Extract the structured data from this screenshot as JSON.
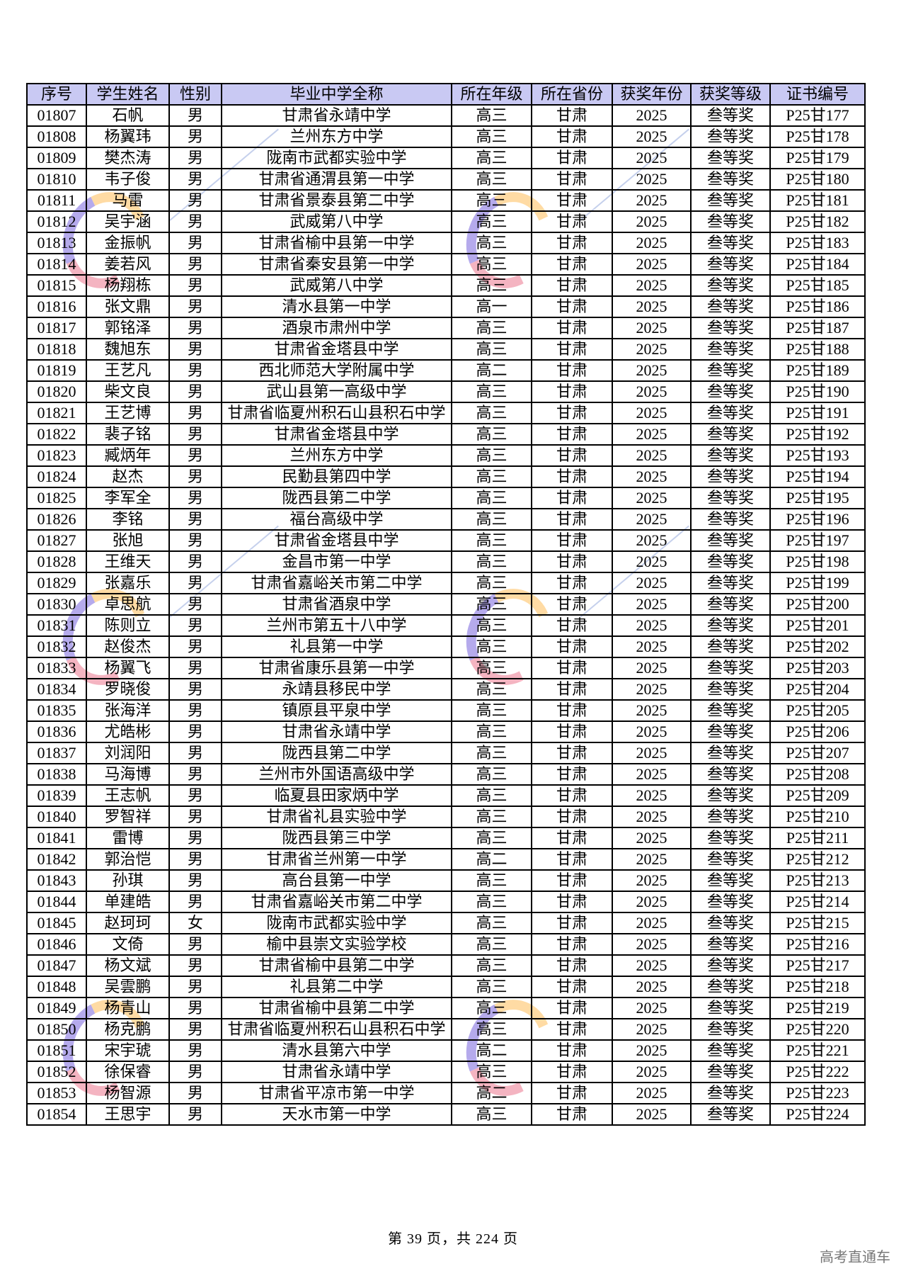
{
  "table": {
    "headers": [
      "序号",
      "学生姓名",
      "性别",
      "毕业中学全称",
      "所在年级",
      "所在省份",
      "获奖年份",
      "获奖等级",
      "证书编号"
    ],
    "rows": [
      [
        "01807",
        "石帆",
        "男",
        "甘肃省永靖中学",
        "高三",
        "甘肃",
        "2025",
        "叁等奖",
        "P25甘177"
      ],
      [
        "01808",
        "杨翼玮",
        "男",
        "兰州东方中学",
        "高三",
        "甘肃",
        "2025",
        "叁等奖",
        "P25甘178"
      ],
      [
        "01809",
        "樊杰涛",
        "男",
        "陇南市武都实验中学",
        "高三",
        "甘肃",
        "2025",
        "叁等奖",
        "P25甘179"
      ],
      [
        "01810",
        "韦子俊",
        "男",
        "甘肃省通渭县第一中学",
        "高三",
        "甘肃",
        "2025",
        "叁等奖",
        "P25甘180"
      ],
      [
        "01811",
        "马雷",
        "男",
        "甘肃省景泰县第二中学",
        "高三",
        "甘肃",
        "2025",
        "叁等奖",
        "P25甘181"
      ],
      [
        "01812",
        "吴宇涵",
        "男",
        "武威第八中学",
        "高三",
        "甘肃",
        "2025",
        "叁等奖",
        "P25甘182"
      ],
      [
        "01813",
        "金振帆",
        "男",
        "甘肃省榆中县第一中学",
        "高三",
        "甘肃",
        "2025",
        "叁等奖",
        "P25甘183"
      ],
      [
        "01814",
        "姜若风",
        "男",
        "甘肃省秦安县第一中学",
        "高三",
        "甘肃",
        "2025",
        "叁等奖",
        "P25甘184"
      ],
      [
        "01815",
        "杨翔栋",
        "男",
        "武威第八中学",
        "高三",
        "甘肃",
        "2025",
        "叁等奖",
        "P25甘185"
      ],
      [
        "01816",
        "张文鼎",
        "男",
        "清水县第一中学",
        "高一",
        "甘肃",
        "2025",
        "叁等奖",
        "P25甘186"
      ],
      [
        "01817",
        "郭铭泽",
        "男",
        "酒泉市肃州中学",
        "高三",
        "甘肃",
        "2025",
        "叁等奖",
        "P25甘187"
      ],
      [
        "01818",
        "魏旭东",
        "男",
        "甘肃省金塔县中学",
        "高三",
        "甘肃",
        "2025",
        "叁等奖",
        "P25甘188"
      ],
      [
        "01819",
        "王艺凡",
        "男",
        "西北师范大学附属中学",
        "高二",
        "甘肃",
        "2025",
        "叁等奖",
        "P25甘189"
      ],
      [
        "01820",
        "柴文良",
        "男",
        "武山县第一高级中学",
        "高三",
        "甘肃",
        "2025",
        "叁等奖",
        "P25甘190"
      ],
      [
        "01821",
        "王艺博",
        "男",
        "甘肃省临夏州积石山县积石中学",
        "高三",
        "甘肃",
        "2025",
        "叁等奖",
        "P25甘191"
      ],
      [
        "01822",
        "裴子铭",
        "男",
        "甘肃省金塔县中学",
        "高三",
        "甘肃",
        "2025",
        "叁等奖",
        "P25甘192"
      ],
      [
        "01823",
        "臧炳年",
        "男",
        "兰州东方中学",
        "高三",
        "甘肃",
        "2025",
        "叁等奖",
        "P25甘193"
      ],
      [
        "01824",
        "赵杰",
        "男",
        "民勤县第四中学",
        "高三",
        "甘肃",
        "2025",
        "叁等奖",
        "P25甘194"
      ],
      [
        "01825",
        "李军全",
        "男",
        "陇西县第二中学",
        "高三",
        "甘肃",
        "2025",
        "叁等奖",
        "P25甘195"
      ],
      [
        "01826",
        "李铭",
        "男",
        "福台高级中学",
        "高三",
        "甘肃",
        "2025",
        "叁等奖",
        "P25甘196"
      ],
      [
        "01827",
        "张旭",
        "男",
        "甘肃省金塔县中学",
        "高三",
        "甘肃",
        "2025",
        "叁等奖",
        "P25甘197"
      ],
      [
        "01828",
        "王维天",
        "男",
        "金昌市第一中学",
        "高三",
        "甘肃",
        "2025",
        "叁等奖",
        "P25甘198"
      ],
      [
        "01829",
        "张嘉乐",
        "男",
        "甘肃省嘉峪关市第二中学",
        "高三",
        "甘肃",
        "2025",
        "叁等奖",
        "P25甘199"
      ],
      [
        "01830",
        "卓思航",
        "男",
        "甘肃省酒泉中学",
        "高三",
        "甘肃",
        "2025",
        "叁等奖",
        "P25甘200"
      ],
      [
        "01831",
        "陈则立",
        "男",
        "兰州市第五十八中学",
        "高三",
        "甘肃",
        "2025",
        "叁等奖",
        "P25甘201"
      ],
      [
        "01832",
        "赵俊杰",
        "男",
        "礼县第一中学",
        "高三",
        "甘肃",
        "2025",
        "叁等奖",
        "P25甘202"
      ],
      [
        "01833",
        "杨翼飞",
        "男",
        "甘肃省康乐县第一中学",
        "高三",
        "甘肃",
        "2025",
        "叁等奖",
        "P25甘203"
      ],
      [
        "01834",
        "罗晓俊",
        "男",
        "永靖县移民中学",
        "高三",
        "甘肃",
        "2025",
        "叁等奖",
        "P25甘204"
      ],
      [
        "01835",
        "张海洋",
        "男",
        "镇原县平泉中学",
        "高三",
        "甘肃",
        "2025",
        "叁等奖",
        "P25甘205"
      ],
      [
        "01836",
        "尤皓彬",
        "男",
        "甘肃省永靖中学",
        "高三",
        "甘肃",
        "2025",
        "叁等奖",
        "P25甘206"
      ],
      [
        "01837",
        "刘润阳",
        "男",
        "陇西县第二中学",
        "高三",
        "甘肃",
        "2025",
        "叁等奖",
        "P25甘207"
      ],
      [
        "01838",
        "马海博",
        "男",
        "兰州市外国语高级中学",
        "高三",
        "甘肃",
        "2025",
        "叁等奖",
        "P25甘208"
      ],
      [
        "01839",
        "王志帆",
        "男",
        "临夏县田家炳中学",
        "高三",
        "甘肃",
        "2025",
        "叁等奖",
        "P25甘209"
      ],
      [
        "01840",
        "罗智祥",
        "男",
        "甘肃省礼县实验中学",
        "高三",
        "甘肃",
        "2025",
        "叁等奖",
        "P25甘210"
      ],
      [
        "01841",
        "雷博",
        "男",
        "陇西县第三中学",
        "高三",
        "甘肃",
        "2025",
        "叁等奖",
        "P25甘211"
      ],
      [
        "01842",
        "郭治恺",
        "男",
        "甘肃省兰州第一中学",
        "高二",
        "甘肃",
        "2025",
        "叁等奖",
        "P25甘212"
      ],
      [
        "01843",
        "孙琪",
        "男",
        "高台县第一中学",
        "高三",
        "甘肃",
        "2025",
        "叁等奖",
        "P25甘213"
      ],
      [
        "01844",
        "单建皓",
        "男",
        "甘肃省嘉峪关市第二中学",
        "高三",
        "甘肃",
        "2025",
        "叁等奖",
        "P25甘214"
      ],
      [
        "01845",
        "赵珂珂",
        "女",
        "陇南市武都实验中学",
        "高三",
        "甘肃",
        "2025",
        "叁等奖",
        "P25甘215"
      ],
      [
        "01846",
        "文倚",
        "男",
        "榆中县崇文实验学校",
        "高三",
        "甘肃",
        "2025",
        "叁等奖",
        "P25甘216"
      ],
      [
        "01847",
        "杨文斌",
        "男",
        "甘肃省榆中县第二中学",
        "高三",
        "甘肃",
        "2025",
        "叁等奖",
        "P25甘217"
      ],
      [
        "01848",
        "吴雲鹏",
        "男",
        "礼县第二中学",
        "高三",
        "甘肃",
        "2025",
        "叁等奖",
        "P25甘218"
      ],
      [
        "01849",
        "杨青山",
        "男",
        "甘肃省榆中县第二中学",
        "高三",
        "甘肃",
        "2025",
        "叁等奖",
        "P25甘219"
      ],
      [
        "01850",
        "杨克鹏",
        "男",
        "甘肃省临夏州积石山县积石中学",
        "高三",
        "甘肃",
        "2025",
        "叁等奖",
        "P25甘220"
      ],
      [
        "01851",
        "宋宇琥",
        "男",
        "清水县第六中学",
        "高二",
        "甘肃",
        "2025",
        "叁等奖",
        "P25甘221"
      ],
      [
        "01852",
        "徐保睿",
        "男",
        "甘肃省永靖中学",
        "高三",
        "甘肃",
        "2025",
        "叁等奖",
        "P25甘222"
      ],
      [
        "01853",
        "杨智源",
        "男",
        "甘肃省平凉市第一中学",
        "高二",
        "甘肃",
        "2025",
        "叁等奖",
        "P25甘223"
      ],
      [
        "01854",
        "王思宇",
        "男",
        "天水市第一中学",
        "高三",
        "甘肃",
        "2025",
        "叁等奖",
        "P25甘224"
      ]
    ]
  },
  "footer": {
    "page_label": "第 39 页，共 224 页"
  },
  "brand": "高考直通车",
  "colors": {
    "header_bg": "#c9c9f3"
  }
}
